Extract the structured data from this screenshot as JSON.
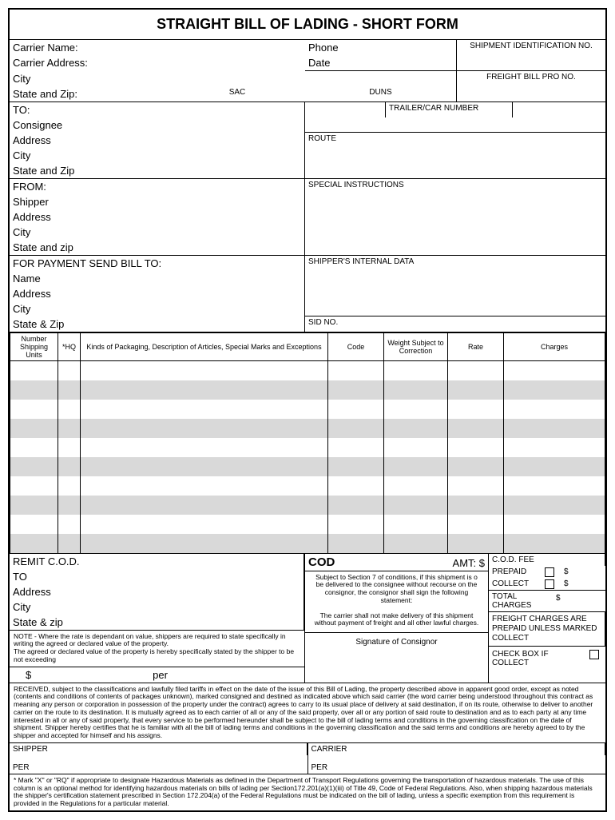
{
  "title": "STRAIGHT BILL OF LADING - SHORT FORM",
  "carrier": {
    "name_label": "Carrier Name:",
    "address_label": "Carrier Address:",
    "city_label": "City",
    "state_zip_label": "State and Zip:",
    "sac_label": "SAC",
    "phone_label": "Phone",
    "date_label": "Date",
    "duns_label": "DUNS"
  },
  "shipment_id_label": "SHIPMENT IDENTIFICATION NO.",
  "freight_bill_label": "FREIGHT BILL PRO NO.",
  "trailer_label": "TRAILER/CAR NUMBER",
  "route_label": "ROUTE",
  "special_label": "SPECIAL INSTRUCTIONS",
  "shipper_data_label": "SHIPPER'S INTERNAL DATA",
  "sid_label": "SID NO.",
  "to": {
    "heading": "TO:",
    "consignee": "Consignee",
    "address": "Address",
    "city": "City",
    "state_zip": "State and Zip"
  },
  "from": {
    "heading": "FROM:",
    "shipper": "Shipper",
    "address": "Address",
    "city": "City",
    "state_zip": "State and zip"
  },
  "payment": {
    "heading": "FOR PAYMENT SEND BILL TO:",
    "name": "Name",
    "address": "Address",
    "city": "City",
    "state_zip": "State & Zip"
  },
  "items_table": {
    "headers": {
      "units": "Number Shipping Units",
      "hq": "*HQ",
      "desc": "Kinds of Packaging, Description of Articles, Special Marks and Exceptions",
      "code": "Code",
      "weight": "Weight Subject to Correction",
      "rate": "Rate",
      "charges": "Charges"
    },
    "row_count": 10,
    "shade_color": "#d9d9d9"
  },
  "remit": {
    "heading": "REMIT C.O.D.",
    "to": "TO",
    "address": "Address",
    "city": "City",
    "state_zip": "State & zip"
  },
  "cod": {
    "heading": "COD",
    "amt": "AMT: $",
    "section7_text": "Subject to Section 7 of conditions, if this shipment is o be delivered to the consignee without recourse on the consignor, the consignor shall sign the following statement:",
    "carrier_text": "The carrier shall not make delivery of this shipment without payment of freight and all other lawful charges.",
    "signature_label": "Signature of Consignor"
  },
  "cod_fee": {
    "heading": "C.O.D. FEE",
    "prepaid": "PREPAID",
    "collect": "COLLECT",
    "dollar": "$",
    "total_charges": "TOTAL CHARGES",
    "freight_text": "FREIGHT CHARGES ARE PREPAID UNLESS MARKED COLLECT",
    "check_collect": "CHECK BOX IF COLLECT"
  },
  "note_rate": "NOTE - Where the rate is dependant on value, shippers are required to state specifically in writing the agreed or declared value of the property.\nThe agreed or declared value of the property is hereby specifically stated by the shipper to be not exceeding",
  "dollar_per": {
    "dollar": "$",
    "per": "per"
  },
  "received_text": "RECEIVED, subject to the classifications and lawfully filed tariffs in effect on the date of the issue of this Bill of Lading, the property described above in apparent good order, except as noted (contents and conditions of contents of packages unknown), marked consigned and destined as indicated above which said carrier (the word carrier being understood throughout this contract as meaning any person or corporation in possession of the property under the contract) agrees to carry to its usual place of delivery at said destination, if on its route, otherwise to deliver to another carrier on the route to its destination. It is mutually agreed as to each carrier of all or any of the said property, over all or any portion of said route to destination and as to each party at any time interested in all or any of said property, that every service to be performed hereunder shall be subject to the bill of lading terms and conditions in the governing classification on the date of shipment. Shipper hereby certifies that he is familiar with all the bill of lading terms and conditions in the governing classification and the said terms and conditions are hereby agreed to by the shipper and accepted for himself and his assigns.",
  "sig": {
    "shipper": "SHIPPER",
    "carrier": "CARRIER",
    "per": "PER"
  },
  "footnote": "*  Mark \"X\" or \"RQ\" if appropriate to designate Hazardous Materials as defined in the Department of Transport Regulations governing the transportation of hazardous materials.  The use of this column is an optional method for identifying hazardous materials on bills of lading per Section172.201(a)(1)(iii) of Title 49, Code of Federal Regulations.  Also, when shipping hazardous materials the shipper's certification statement prescribed in Section 172.204(a) of the Federal Regulations must be indicated on the bill of lading, unless a specific exemption from this requirement is provided in the Regulations for a particular material."
}
